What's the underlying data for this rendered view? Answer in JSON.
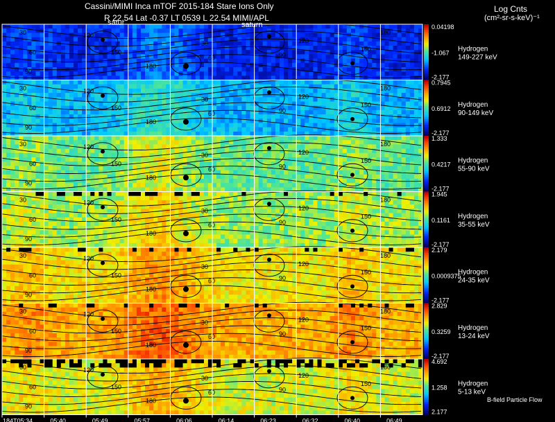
{
  "header": {
    "title": "Cassini/MIMI Inca mTOF  2015-184   Stare   Ions Only",
    "subtitle": "R        22.54  Lat -0.37 LT 0539 L         22.54  MIMI/APL",
    "log_cnts": "Log Cnts",
    "units": "(cm²-sr-s-keV)⁻¹",
    "satur_label": "satur",
    "saturn_label": "saturn",
    "flow_label": "B-field Particle Flow"
  },
  "chart_data": {
    "type": "heatmap",
    "time_ticks": [
      "184T05:34",
      "05:40",
      "05:49",
      "05:57",
      "06:06",
      "06:14",
      "06:23",
      "06:32",
      "06:40",
      "06:49"
    ],
    "contour_levels": [
      "30",
      "60",
      "90",
      "120",
      "150",
      "180"
    ],
    "panels": [
      {
        "species": "Hydrogen",
        "energy": "149-227 keV",
        "cbar_max": "0.04198",
        "cbar_mid": "-1.067",
        "cbar_min": "-2.177",
        "level": 0.15
      },
      {
        "species": "Hydrogen",
        "energy": "90-149 keV",
        "cbar_max": "0.7945",
        "cbar_mid": "0.6912",
        "cbar_min": "-2.177",
        "level": 0.34
      },
      {
        "species": "Hydrogen",
        "energy": "55-90 keV",
        "cbar_max": "1.333",
        "cbar_mid": "0.4217",
        "cbar_min": "-2.177",
        "level": 0.52
      },
      {
        "species": "Hydrogen",
        "energy": "35-55 keV",
        "cbar_max": "1.945",
        "cbar_mid": "0.1161",
        "cbar_min": "-2.177",
        "level": 0.57
      },
      {
        "species": "Hydrogen",
        "energy": "24-35 keV",
        "cbar_max": "2.179",
        "cbar_mid": "0.0009375",
        "cbar_min": "-2.177",
        "level": 0.66
      },
      {
        "species": "Hydrogen",
        "energy": "13-24 keV",
        "cbar_max": "2.829",
        "cbar_mid": "0.3259",
        "cbar_min": "-2.177",
        "level": 0.74
      },
      {
        "species": "Hydrogen",
        "energy": "5-13 keV",
        "cbar_max": "4.692",
        "cbar_mid": "1.258",
        "cbar_min": "2.177",
        "level": 0.62
      }
    ]
  }
}
